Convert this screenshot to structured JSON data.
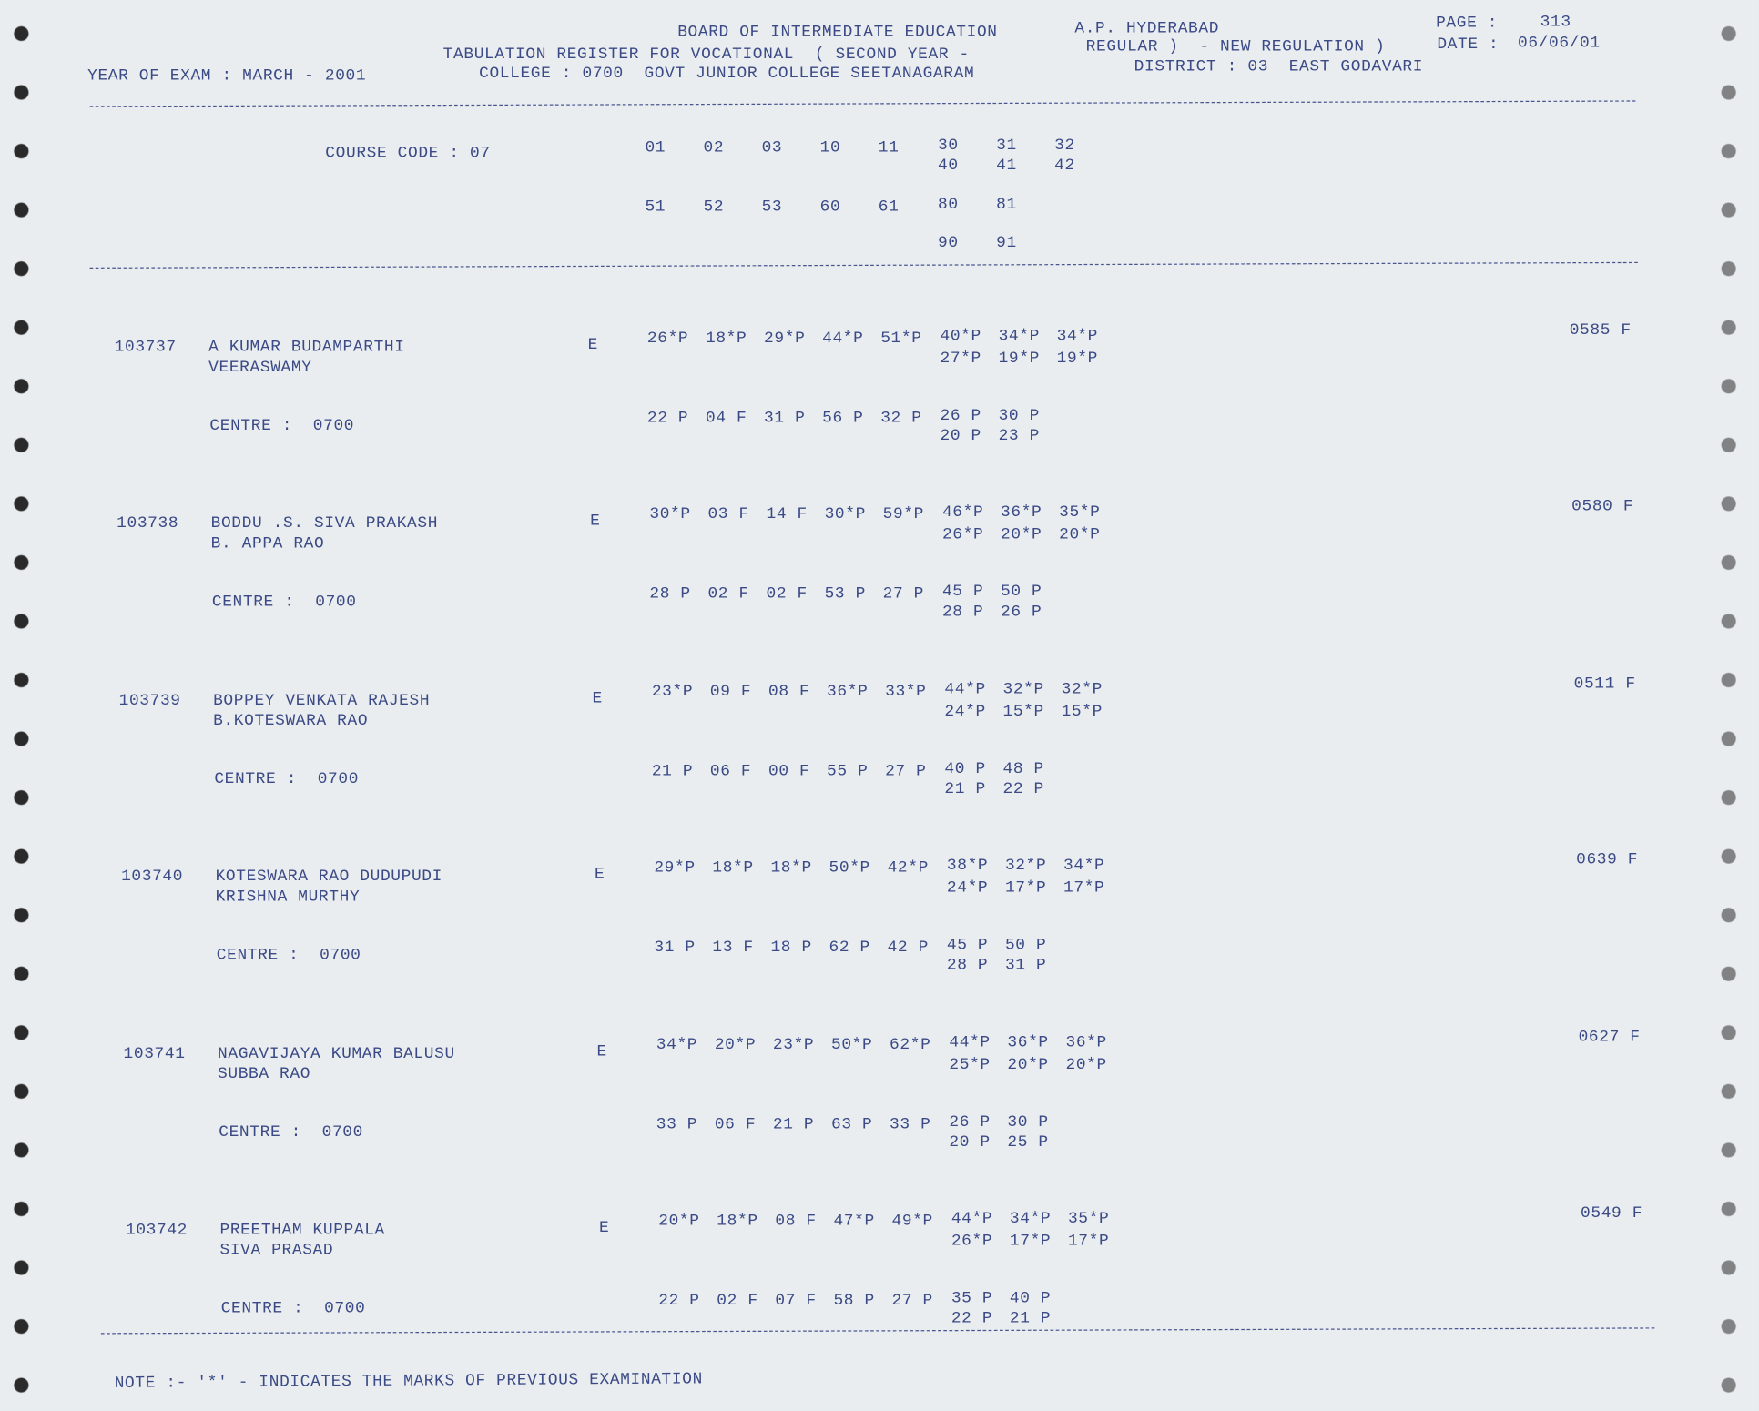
{
  "header": {
    "board": "BOARD OF INTERMEDIATE EDUCATION",
    "location": "A.P. HYDERABAD",
    "page_label": "PAGE :",
    "page": "313",
    "register": "TABULATION REGISTER FOR VOCATIONAL  ( SECOND YEAR -",
    "regulation": "REGULAR )  - NEW REGULATION )",
    "date_label": "DATE :",
    "date": "06/06/01",
    "year_of_exam": "YEAR OF EXAM : MARCH - 2001",
    "college": "COLLEGE : 0700  GOVT JUNIOR COLLEGE SEETANAGARAM",
    "district": "DISTRICT : 03  EAST GODAVARI"
  },
  "course": {
    "label": "COURSE CODE : 07",
    "row1": [
      "01",
      "02",
      "03",
      "10",
      "11",
      "30",
      "31",
      "32"
    ],
    "row1b": [
      "40",
      "41",
      "42"
    ],
    "row2": [
      "51",
      "52",
      "53",
      "60",
      "61",
      "80",
      "81"
    ],
    "row3": [
      "90",
      "91"
    ]
  },
  "students": [
    {
      "id": "103737",
      "name": "A KUMAR BUDAMPARTHI",
      "parent": "VEERASWAMY",
      "medium": "E",
      "total": "0585 F",
      "centre": "CENTRE :  0700",
      "marks1": [
        "26*P",
        "18*P",
        "29*P",
        "44*P",
        "51*P",
        "40*P",
        "34*P",
        "34*P"
      ],
      "marks1b": [
        "27*P",
        "19*P",
        "19*P"
      ],
      "marks2": [
        "22 P",
        "04 F",
        "31 P",
        "56 P",
        "32 P",
        "26 P",
        "30 P"
      ],
      "marks2b": [
        "20 P",
        "23 P"
      ]
    },
    {
      "id": "103738",
      "name": "BODDU .S. SIVA PRAKASH",
      "parent": "B. APPA RAO",
      "medium": "E",
      "total": "0580 F",
      "centre": "CENTRE :  0700",
      "marks1": [
        "30*P",
        "03 F",
        "14 F",
        "30*P",
        "59*P",
        "46*P",
        "36*P",
        "35*P"
      ],
      "marks1b": [
        "26*P",
        "20*P",
        "20*P"
      ],
      "marks2": [
        "28 P",
        "02 F",
        "02 F",
        "53 P",
        "27 P",
        "45 P",
        "50 P"
      ],
      "marks2b": [
        "28 P",
        "26 P"
      ]
    },
    {
      "id": "103739",
      "name": "BOPPEY VENKATA RAJESH",
      "parent": "B.KOTESWARA RAO",
      "medium": "E",
      "total": "0511 F",
      "centre": "CENTRE :  0700",
      "marks1": [
        "23*P",
        "09 F",
        "08 F",
        "36*P",
        "33*P",
        "44*P",
        "32*P",
        "32*P"
      ],
      "marks1b": [
        "24*P",
        "15*P",
        "15*P"
      ],
      "marks2": [
        "21 P",
        "06 F",
        "00 F",
        "55 P",
        "27 P",
        "40 P",
        "48 P"
      ],
      "marks2b": [
        "21 P",
        "22 P"
      ]
    },
    {
      "id": "103740",
      "name": "KOTESWARA RAO DUDUPUDI",
      "parent": "KRISHNA MURTHY",
      "medium": "E",
      "total": "0639 F",
      "centre": "CENTRE :  0700",
      "marks1": [
        "29*P",
        "18*P",
        "18*P",
        "50*P",
        "42*P",
        "38*P",
        "32*P",
        "34*P"
      ],
      "marks1b": [
        "24*P",
        "17*P",
        "17*P"
      ],
      "marks2": [
        "31 P",
        "13 F",
        "18 P",
        "62 P",
        "42 P",
        "45 P",
        "50 P"
      ],
      "marks2b": [
        "28 P",
        "31 P"
      ]
    },
    {
      "id": "103741",
      "name": "NAGAVIJAYA KUMAR BALUSU",
      "parent": "SUBBA RAO",
      "medium": "E",
      "total": "0627 F",
      "centre": "CENTRE :  0700",
      "marks1": [
        "34*P",
        "20*P",
        "23*P",
        "50*P",
        "62*P",
        "44*P",
        "36*P",
        "36*P"
      ],
      "marks1b": [
        "25*P",
        "20*P",
        "20*P"
      ],
      "marks2": [
        "33 P",
        "06 F",
        "21 P",
        "63 P",
        "33 P",
        "26 P",
        "30 P"
      ],
      "marks2b": [
        "20 P",
        "25 P"
      ]
    },
    {
      "id": "103742",
      "name": "PREETHAM KUPPALA",
      "parent": "SIVA PRASAD",
      "medium": "E",
      "total": "0549 F",
      "centre": "CENTRE :  0700",
      "marks1": [
        "20*P",
        "18*P",
        "08 F",
        "47*P",
        "49*P",
        "44*P",
        "34*P",
        "35*P"
      ],
      "marks1b": [
        "26*P",
        "17*P",
        "17*P"
      ],
      "marks2": [
        "22 P",
        "02 F",
        "07 F",
        "58 P",
        "27 P",
        "35 P",
        "40 P"
      ],
      "marks2b": [
        "22 P",
        "21 P"
      ]
    }
  ],
  "note": "NOTE :- '*' - INDICATES THE MARKS OF PREVIOUS EXAMINATION"
}
